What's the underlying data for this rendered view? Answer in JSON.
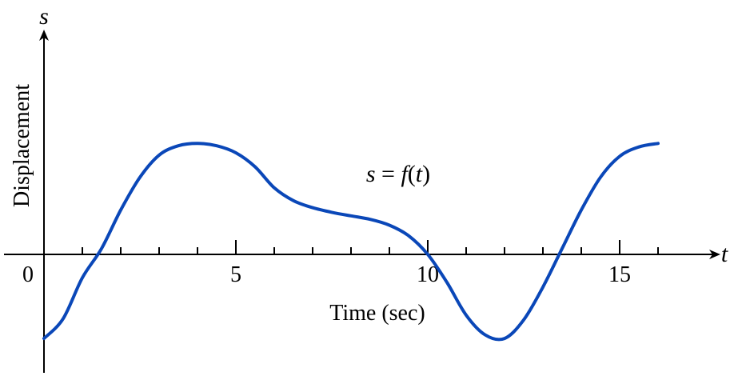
{
  "chart_data": {
    "type": "line",
    "title": "",
    "xlabel": "Time (sec)",
    "ylabel": "Displacement",
    "x_axis_symbol": "t",
    "y_axis_symbol": "s",
    "origin_label": "0",
    "xlim": [
      0,
      17.5
    ],
    "x_ticks": [
      1,
      2,
      3,
      4,
      5,
      6,
      7,
      8,
      9,
      10,
      11,
      12,
      13,
      14,
      15,
      16
    ],
    "x_tick_labels": [
      {
        "value": 5,
        "label": "5"
      },
      {
        "value": 10,
        "label": "10"
      },
      {
        "value": 15,
        "label": "15"
      }
    ],
    "grid": false,
    "annotation": {
      "parts": [
        "s",
        " = ",
        "f",
        "(",
        "t",
        ")"
      ]
    },
    "series": [
      {
        "color": "#0a47b8",
        "x": [
          0,
          0.5,
          1.0,
          1.5,
          2.0,
          2.5,
          3.0,
          3.5,
          4.0,
          4.5,
          5.0,
          5.5,
          6.0,
          6.5,
          7.0,
          7.5,
          8.0,
          8.5,
          9.0,
          9.5,
          10.0,
          10.5,
          11.0,
          11.5,
          12.0,
          12.5,
          13.0,
          13.5,
          14.0,
          14.5,
          15.0,
          15.5,
          16.0
        ],
        "y": [
          -0.72,
          -0.55,
          -0.2,
          0.05,
          0.38,
          0.66,
          0.85,
          0.93,
          0.95,
          0.93,
          0.87,
          0.75,
          0.57,
          0.46,
          0.4,
          0.36,
          0.33,
          0.3,
          0.25,
          0.16,
          0.0,
          -0.24,
          -0.52,
          -0.69,
          -0.72,
          -0.56,
          -0.28,
          0.05,
          0.38,
          0.66,
          0.84,
          0.92,
          0.95
        ]
      }
    ]
  }
}
